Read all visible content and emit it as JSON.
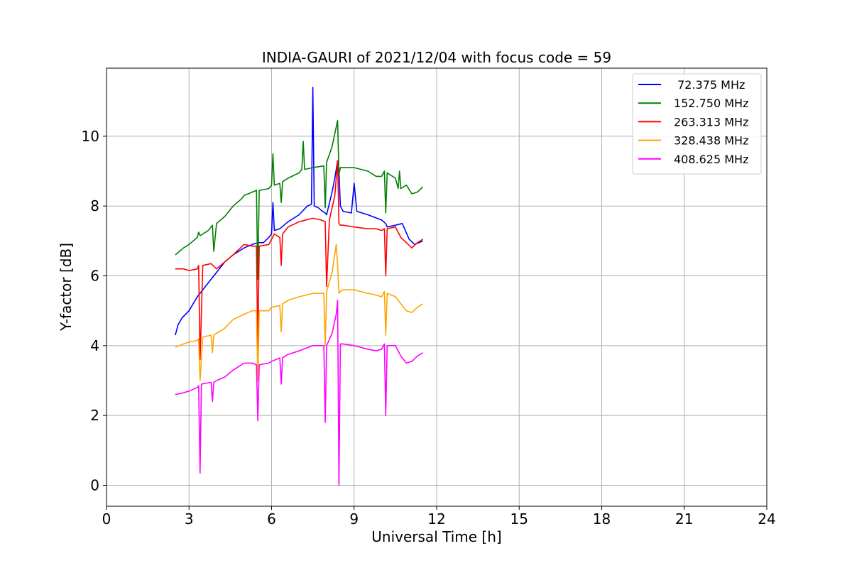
{
  "chart_data": {
    "type": "line",
    "title": "INDIA-GAURI of 2021/12/04 with focus code = 59",
    "xlabel": "Universal Time [h]",
    "ylabel": "Y-factor [dB]",
    "xlim": [
      0,
      24
    ],
    "ylim": [
      -0.6,
      11.95
    ],
    "xticks": [
      0,
      3,
      6,
      9,
      12,
      15,
      18,
      21,
      24
    ],
    "xtick_labels": [
      "0",
      "3",
      "6",
      "9",
      "12",
      "15",
      "18",
      "21",
      "24"
    ],
    "yticks": [
      0,
      2,
      4,
      6,
      8,
      10
    ],
    "ytick_labels": [
      "0",
      "2",
      "4",
      "6",
      "8",
      "10"
    ],
    "grid": true,
    "legend_position": "top-right",
    "series": [
      {
        "name": " 72.375 MHz",
        "color": "#0000ff",
        "x": [
          2.5,
          2.6,
          2.75,
          3.0,
          3.3,
          3.5,
          3.8,
          4.0,
          4.3,
          4.6,
          5.0,
          5.3,
          5.5,
          5.7,
          5.9,
          6.0,
          6.05,
          6.1,
          6.3,
          6.6,
          7.0,
          7.3,
          7.45,
          7.5,
          7.55,
          7.7,
          7.85,
          7.95,
          8.0,
          8.2,
          8.3,
          8.4,
          8.45,
          8.5,
          8.6,
          8.9,
          9.0,
          9.1,
          9.5,
          10.0,
          10.15,
          10.2,
          10.5,
          10.75,
          11.0,
          11.2,
          11.5
        ],
        "y": [
          4.3,
          4.6,
          4.8,
          5.0,
          5.4,
          5.6,
          5.9,
          6.1,
          6.4,
          6.6,
          6.8,
          6.9,
          6.95,
          6.95,
          7.1,
          7.2,
          8.1,
          7.3,
          7.35,
          7.55,
          7.75,
          8.0,
          8.05,
          11.4,
          8.0,
          7.95,
          7.85,
          7.8,
          7.75,
          8.4,
          8.8,
          9.3,
          9.0,
          8.0,
          7.85,
          7.8,
          8.65,
          7.85,
          7.75,
          7.6,
          7.5,
          7.4,
          7.45,
          7.5,
          7.05,
          6.9,
          7.0
        ]
      },
      {
        "name": "152.750 MHz",
        "color": "#008000",
        "x": [
          2.5,
          2.8,
          3.0,
          3.3,
          3.35,
          3.4,
          3.7,
          3.85,
          3.9,
          4.0,
          4.3,
          4.6,
          4.9,
          5.0,
          5.3,
          5.45,
          5.5,
          5.55,
          5.9,
          6.0,
          6.05,
          6.1,
          6.3,
          6.35,
          6.4,
          6.6,
          7.0,
          7.1,
          7.15,
          7.2,
          7.5,
          7.9,
          7.95,
          8.0,
          8.2,
          8.4,
          8.45,
          8.5,
          8.6,
          9.0,
          9.5,
          9.8,
          10.0,
          10.1,
          10.15,
          10.2,
          10.5,
          10.6,
          10.65,
          10.7,
          10.9,
          11.1,
          11.3,
          11.5
        ],
        "y": [
          6.6,
          6.8,
          6.9,
          7.1,
          7.25,
          7.15,
          7.3,
          7.45,
          6.7,
          7.5,
          7.7,
          8.0,
          8.2,
          8.3,
          8.4,
          8.45,
          5.9,
          8.45,
          8.5,
          8.6,
          9.5,
          8.6,
          8.65,
          8.1,
          8.7,
          8.8,
          8.95,
          9.05,
          9.85,
          9.05,
          9.1,
          9.15,
          7.95,
          9.25,
          9.7,
          10.45,
          8.9,
          9.1,
          9.1,
          9.1,
          9.0,
          8.85,
          8.85,
          9.0,
          7.8,
          8.95,
          8.8,
          8.5,
          9.0,
          8.5,
          8.6,
          8.35,
          8.4,
          8.55
        ]
      },
      {
        "name": "263.313 MHz",
        "color": "#ff0000",
        "x": [
          2.5,
          2.8,
          3.0,
          3.3,
          3.35,
          3.4,
          3.5,
          3.8,
          4.0,
          4.3,
          4.6,
          5.0,
          5.3,
          5.45,
          5.5,
          5.55,
          5.9,
          6.1,
          6.3,
          6.35,
          6.4,
          6.6,
          7.0,
          7.5,
          7.8,
          7.95,
          8.0,
          8.1,
          8.3,
          8.4,
          8.45,
          8.5,
          8.6,
          9.0,
          9.5,
          9.8,
          10.0,
          10.1,
          10.15,
          10.2,
          10.5,
          10.7,
          10.9,
          11.1,
          11.3,
          11.5
        ],
        "y": [
          6.2,
          6.2,
          6.15,
          6.2,
          6.3,
          3.6,
          6.3,
          6.35,
          6.2,
          6.4,
          6.6,
          6.9,
          6.85,
          6.85,
          3.9,
          6.85,
          6.9,
          7.2,
          7.1,
          6.3,
          7.2,
          7.4,
          7.55,
          7.65,
          7.6,
          7.55,
          5.7,
          7.6,
          8.3,
          9.3,
          7.5,
          7.45,
          7.45,
          7.4,
          7.35,
          7.35,
          7.3,
          7.35,
          6.0,
          7.35,
          7.4,
          7.1,
          6.95,
          6.8,
          6.95,
          7.05
        ]
      },
      {
        "name": "328.438 MHz",
        "color": "#ffa500",
        "x": [
          2.5,
          2.8,
          3.0,
          3.3,
          3.35,
          3.4,
          3.5,
          3.8,
          3.85,
          3.9,
          4.0,
          4.3,
          4.6,
          5.0,
          5.3,
          5.45,
          5.5,
          5.55,
          5.9,
          6.0,
          6.3,
          6.35,
          6.4,
          6.6,
          7.0,
          7.5,
          7.9,
          7.95,
          8.0,
          8.2,
          8.35,
          8.4,
          8.45,
          8.5,
          8.6,
          9.0,
          9.5,
          9.8,
          10.0,
          10.1,
          10.15,
          10.2,
          10.5,
          10.7,
          10.9,
          11.1,
          11.3,
          11.5
        ],
        "y": [
          3.95,
          4.05,
          4.1,
          4.15,
          4.2,
          3.0,
          4.25,
          4.3,
          3.8,
          4.3,
          4.35,
          4.5,
          4.75,
          4.9,
          5.0,
          5.0,
          3.0,
          5.0,
          5.0,
          5.1,
          5.15,
          4.4,
          5.2,
          5.3,
          5.4,
          5.5,
          5.5,
          4.0,
          5.55,
          6.1,
          6.9,
          6.3,
          5.5,
          5.55,
          5.6,
          5.6,
          5.5,
          5.45,
          5.4,
          5.55,
          4.3,
          5.5,
          5.4,
          5.2,
          5.0,
          4.95,
          5.1,
          5.2
        ]
      },
      {
        "name": "408.625 MHz",
        "color": "#ff00ff",
        "x": [
          2.5,
          2.8,
          3.0,
          3.3,
          3.35,
          3.4,
          3.45,
          3.8,
          3.85,
          3.9,
          4.0,
          4.3,
          4.6,
          4.9,
          5.0,
          5.3,
          5.45,
          5.5,
          5.55,
          5.9,
          6.0,
          6.3,
          6.35,
          6.4,
          6.6,
          7.0,
          7.5,
          7.9,
          7.95,
          8.0,
          8.2,
          8.35,
          8.4,
          8.45,
          8.5,
          8.6,
          9.0,
          9.5,
          9.8,
          10.0,
          10.1,
          10.15,
          10.2,
          10.5,
          10.7,
          10.9,
          11.1,
          11.3,
          11.5
        ],
        "y": [
          2.6,
          2.65,
          2.7,
          2.8,
          2.85,
          0.35,
          2.9,
          2.95,
          2.4,
          2.95,
          3.0,
          3.1,
          3.3,
          3.45,
          3.5,
          3.5,
          3.45,
          1.85,
          3.45,
          3.5,
          3.55,
          3.65,
          2.9,
          3.65,
          3.75,
          3.85,
          4.0,
          4.0,
          1.8,
          4.0,
          4.35,
          4.9,
          5.3,
          0.0,
          4.05,
          4.05,
          4.0,
          3.9,
          3.85,
          3.9,
          4.05,
          2.0,
          4.0,
          4.0,
          3.7,
          3.5,
          3.55,
          3.7,
          3.8
        ]
      }
    ]
  }
}
